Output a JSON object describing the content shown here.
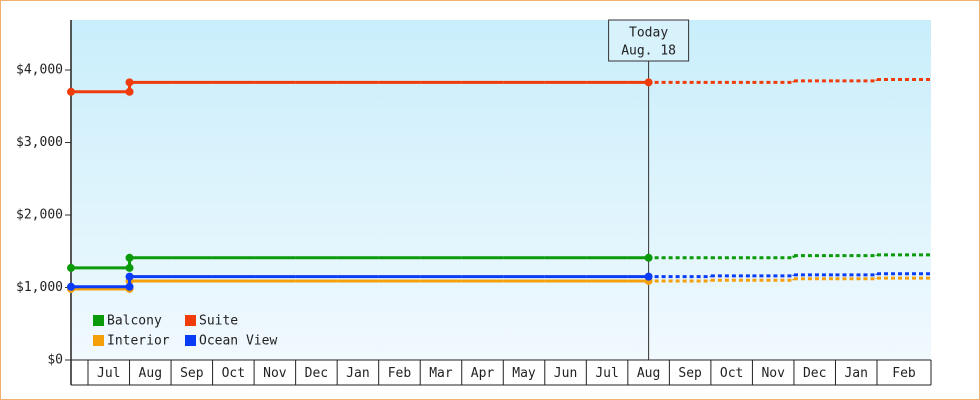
{
  "chart_data": {
    "type": "step-line",
    "categories": [
      null,
      "Jul",
      "Aug",
      "Sep",
      "Oct",
      "Nov",
      "Dec",
      "Jan",
      "Feb",
      "Mar",
      "Apr",
      "May",
      "Jun",
      "Jul",
      "Aug",
      "Sep",
      "Oct",
      "Nov",
      "Dec",
      "Jan",
      "Feb"
    ],
    "series": [
      {
        "name": "Balcony",
        "color": "#0a9a0a",
        "values": [
          1270,
          1270,
          1410,
          1410,
          1410,
          1410,
          1410,
          1410,
          1410,
          1410,
          1410,
          1410,
          1410,
          1410,
          1410,
          null,
          null,
          null,
          null,
          null,
          null
        ],
        "forecast": [
          null,
          null,
          null,
          null,
          null,
          null,
          null,
          null,
          null,
          null,
          null,
          null,
          null,
          null,
          null,
          1410,
          1410,
          1410,
          1440,
          1440,
          1450
        ]
      },
      {
        "name": "Suite",
        "color": "#f03c0a",
        "values": [
          3700,
          3700,
          3830,
          3830,
          3830,
          3830,
          3830,
          3830,
          3830,
          3830,
          3830,
          3830,
          3830,
          3830,
          3830,
          null,
          null,
          null,
          null,
          null,
          null
        ],
        "forecast": [
          null,
          null,
          null,
          null,
          null,
          null,
          null,
          null,
          null,
          null,
          null,
          null,
          null,
          null,
          null,
          3830,
          3830,
          3830,
          3850,
          3850,
          3870
        ]
      },
      {
        "name": "Interior",
        "color": "#f5a00a",
        "values": [
          980,
          980,
          1090,
          1090,
          1090,
          1090,
          1090,
          1090,
          1090,
          1090,
          1090,
          1090,
          1090,
          1090,
          1090,
          null,
          null,
          null,
          null,
          null,
          null
        ],
        "forecast": [
          null,
          null,
          null,
          null,
          null,
          null,
          null,
          null,
          null,
          null,
          null,
          null,
          null,
          null,
          null,
          1090,
          1100,
          1100,
          1120,
          1120,
          1130
        ]
      },
      {
        "name": "Ocean View",
        "color": "#0a3cf5",
        "values": [
          1010,
          1010,
          1150,
          1150,
          1150,
          1150,
          1150,
          1150,
          1150,
          1150,
          1150,
          1150,
          1150,
          1150,
          1150,
          null,
          null,
          null,
          null,
          null,
          null
        ],
        "forecast": [
          null,
          null,
          null,
          null,
          null,
          null,
          null,
          null,
          null,
          null,
          null,
          null,
          null,
          null,
          null,
          1150,
          1160,
          1160,
          1175,
          1175,
          1190
        ]
      }
    ],
    "annotation": {
      "title": "Today",
      "date": "Aug. 18"
    },
    "ylim": [
      0,
      4690
    ],
    "yticks": [
      {
        "value": 0,
        "label": "$0"
      },
      {
        "value": 1000,
        "label": "$1,000"
      },
      {
        "value": 2000,
        "label": "$2,000"
      },
      {
        "value": 3000,
        "label": "$3,000"
      },
      {
        "value": 4000,
        "label": "$4,000"
      }
    ],
    "legend": "bottom-left"
  }
}
